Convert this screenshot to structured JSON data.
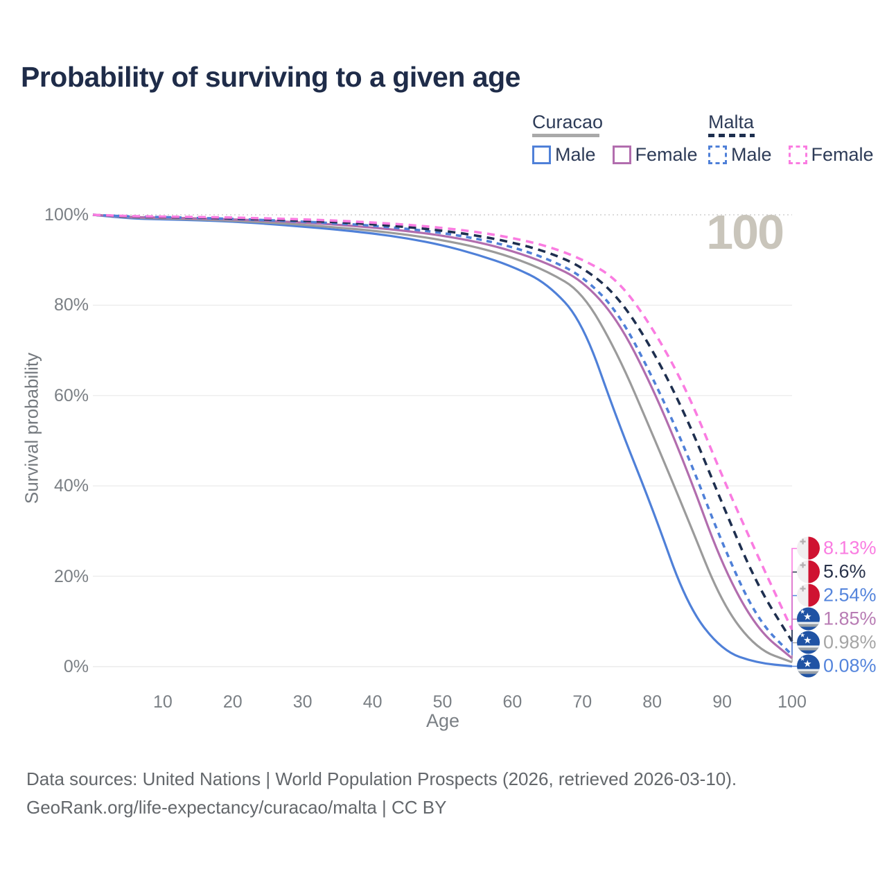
{
  "title": "Probability of surviving to a given age",
  "watermark": "100",
  "ylabel": "Survival probability",
  "xlabel": "Age",
  "footer": {
    "line1": "Data sources: United Nations | World Population Prospects (2026, retrieved 2026-03-10).",
    "line2": "GeoRank.org/life-expectancy/curacao/malta | CC BY"
  },
  "legend": {
    "groups": [
      {
        "label": "Curacao",
        "line": {
          "color": "#a9a9a9",
          "dashed": false
        },
        "items": [
          {
            "label": "Male",
            "color": "#4f80d8",
            "dashed": false
          },
          {
            "label": "Female",
            "color": "#b26dae",
            "dashed": false
          }
        ]
      },
      {
        "label": "Malta",
        "line": {
          "color": "#1e2f4f",
          "dashed": true
        },
        "items": [
          {
            "label": "Male",
            "color": "#4f80d8",
            "dashed": true
          },
          {
            "label": "Female",
            "color": "#fa7ce1",
            "dashed": true
          }
        ]
      }
    ]
  },
  "chart_data": {
    "type": "line",
    "title": "Probability of surviving to a given age",
    "xlabel": "Age",
    "ylabel": "Survival probability",
    "xlim": [
      0,
      100
    ],
    "ylim": [
      0,
      100
    ],
    "grid": true,
    "legend_position": "top-right",
    "ytick_suffix": "%",
    "xticks": [
      10,
      20,
      30,
      40,
      50,
      60,
      70,
      80,
      90,
      100
    ],
    "yticks": [
      0,
      20,
      40,
      60,
      80,
      100
    ],
    "x": [
      0,
      5,
      10,
      15,
      20,
      25,
      30,
      35,
      40,
      45,
      50,
      55,
      60,
      65,
      70,
      75,
      80,
      85,
      90,
      95,
      100
    ],
    "series": [
      {
        "name": "Curacao Male",
        "color": "#4f80d8",
        "dashed": false,
        "values": [
          100,
          99.2,
          99.0,
          98.8,
          98.5,
          98.0,
          97.4,
          96.7,
          95.9,
          94.8,
          93.3,
          91.2,
          88.6,
          84.8,
          76.5,
          54.5,
          35.2,
          13.5,
          3.5,
          0.8,
          0.08
        ]
      },
      {
        "name": "Curacao",
        "color": "#9b9b9b",
        "dashed": false,
        "values": [
          100,
          99.4,
          99.2,
          99.0,
          98.7,
          98.3,
          97.8,
          97.2,
          96.5,
          95.6,
          94.4,
          92.8,
          90.6,
          87.5,
          83.0,
          69.5,
          51.6,
          33.1,
          13.8,
          3.8,
          0.98
        ]
      },
      {
        "name": "Curacao Female",
        "color": "#b26dae",
        "dashed": false,
        "values": [
          100,
          99.5,
          99.4,
          99.2,
          99.0,
          98.7,
          98.3,
          97.8,
          97.2,
          96.4,
          95.4,
          94.0,
          92.0,
          89.3,
          85.5,
          77.0,
          62.0,
          43.6,
          22.4,
          8.2,
          1.85
        ]
      },
      {
        "name": "Malta Male",
        "color": "#4f80d8",
        "dashed": true,
        "values": [
          100,
          99.6,
          99.5,
          99.3,
          99.1,
          98.8,
          98.5,
          98.1,
          97.6,
          96.9,
          96.0,
          94.7,
          92.9,
          90.3,
          86.5,
          78.8,
          64.3,
          47.3,
          27.2,
          10.4,
          2.54
        ]
      },
      {
        "name": "Malta",
        "color": "#1e2f4f",
        "dashed": true,
        "values": [
          100,
          99.6,
          99.5,
          99.4,
          99.2,
          99.0,
          98.7,
          98.4,
          97.9,
          97.3,
          96.5,
          95.4,
          93.9,
          91.8,
          88.5,
          82.2,
          70.4,
          55.0,
          36.1,
          18.0,
          5.6
        ]
      },
      {
        "name": "Malta Female",
        "color": "#fa7ce1",
        "dashed": true,
        "values": [
          100,
          99.7,
          99.6,
          99.5,
          99.4,
          99.2,
          99.0,
          98.7,
          98.3,
          97.8,
          97.1,
          96.2,
          94.9,
          93.1,
          90.2,
          85.8,
          75.2,
          61.1,
          42.1,
          24.8,
          8.13
        ]
      }
    ],
    "endpoints": [
      {
        "series": "Malta Female",
        "label": "8.13%",
        "value": 8.13,
        "color": "#fa7ce1",
        "flag": "malta"
      },
      {
        "series": "Malta",
        "label": "5.6%",
        "value": 5.6,
        "color": "#28324a",
        "flag": "malta"
      },
      {
        "series": "Malta Male",
        "label": "2.54%",
        "value": 2.54,
        "color": "#5585dc",
        "flag": "malta"
      },
      {
        "series": "Curacao Female",
        "label": "1.85%",
        "value": 1.85,
        "color": "#b87cb4",
        "flag": "curacao"
      },
      {
        "series": "Curacao",
        "label": "0.98%",
        "value": 0.98,
        "color": "#a5a5a5",
        "flag": "curacao"
      },
      {
        "series": "Curacao Male",
        "label": "0.08%",
        "value": 0.08,
        "color": "#5585dc",
        "flag": "curacao"
      }
    ]
  }
}
